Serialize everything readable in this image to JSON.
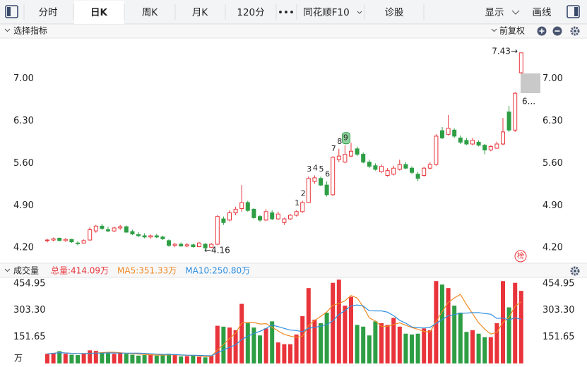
{
  "toolbar": {
    "tabs": [
      "分时",
      "日K",
      "周K",
      "月K",
      "120分",
      "•••",
      "同花顺F10",
      "诊股"
    ],
    "active_tab": 1,
    "right_tabs": [
      "显示",
      "画线"
    ]
  },
  "chart_data": [
    {
      "type": "candlestick",
      "title": "选择指标",
      "adjust": "前复权",
      "up_color": "#e8343a",
      "down_color": "#2e9e45",
      "open": [
        4.32,
        4.33,
        4.36,
        4.32,
        4.34,
        4.28,
        4.28,
        4.33,
        4.48,
        4.56,
        4.5,
        4.48,
        4.53,
        4.55,
        4.47,
        4.42,
        4.4,
        4.38,
        4.4,
        4.38,
        4.32,
        4.24,
        4.26,
        4.23,
        4.25,
        4.22,
        4.26,
        4.21,
        4.26,
        4.68,
        4.66,
        4.78,
        4.85,
        4.95,
        4.84,
        4.72,
        4.66,
        4.78,
        4.68,
        4.62,
        4.68,
        4.74,
        4.8,
        4.95,
        5.3,
        5.35,
        5.24,
        5.08,
        5.66,
        5.62,
        5.72,
        5.84,
        5.75,
        5.62,
        5.56,
        5.46,
        5.4,
        5.42,
        5.5,
        5.58,
        5.52,
        5.42,
        5.4,
        5.52,
        5.58,
        6.14,
        6.08,
        6.15,
        6.02,
        5.98,
        5.92,
        5.95,
        5.9,
        5.82,
        5.85,
        5.92,
        6.45,
        6.15,
        7.1
      ],
      "high": [
        4.35,
        4.37,
        4.37,
        4.36,
        4.35,
        4.31,
        4.34,
        4.54,
        4.58,
        4.6,
        4.55,
        4.55,
        4.58,
        4.57,
        4.5,
        4.46,
        4.44,
        4.42,
        4.43,
        4.4,
        4.34,
        4.28,
        4.29,
        4.28,
        4.27,
        4.3,
        4.28,
        4.28,
        4.74,
        4.72,
        4.82,
        4.88,
        5.24,
        4.98,
        4.86,
        4.74,
        4.84,
        4.82,
        4.8,
        4.7,
        4.76,
        4.82,
        4.98,
        5.38,
        5.4,
        5.38,
        5.3,
        5.72,
        5.84,
        5.9,
        5.94,
        5.88,
        5.78,
        5.66,
        5.6,
        5.58,
        5.52,
        5.56,
        5.66,
        5.62,
        5.55,
        5.46,
        5.54,
        5.62,
        6.08,
        6.2,
        6.4,
        6.18,
        6.06,
        6.02,
        6.02,
        5.98,
        5.92,
        5.9,
        5.96,
        6.35,
        6.55,
        6.78,
        7.43
      ],
      "low": [
        4.29,
        4.31,
        4.31,
        4.3,
        4.28,
        4.24,
        4.27,
        4.32,
        4.45,
        4.5,
        4.46,
        4.46,
        4.5,
        4.45,
        4.41,
        4.38,
        4.36,
        4.35,
        4.36,
        4.33,
        4.22,
        4.21,
        4.22,
        4.21,
        4.2,
        4.21,
        4.16,
        4.2,
        4.25,
        4.58,
        4.64,
        4.74,
        4.8,
        4.8,
        4.68,
        4.63,
        4.64,
        4.66,
        4.66,
        4.58,
        4.66,
        4.72,
        4.78,
        4.94,
        5.26,
        5.22,
        5.05,
        5.06,
        5.62,
        5.6,
        5.7,
        5.72,
        5.6,
        5.52,
        5.48,
        5.44,
        5.38,
        5.4,
        5.48,
        5.5,
        5.42,
        5.3,
        5.38,
        5.5,
        5.56,
        6.0,
        6.06,
        6.02,
        5.92,
        5.9,
        5.9,
        5.88,
        5.75,
        5.8,
        5.84,
        5.9,
        6.12,
        6.12,
        7.08
      ],
      "close": [
        4.33,
        4.35,
        4.32,
        4.34,
        4.3,
        4.27,
        4.32,
        4.5,
        4.56,
        4.52,
        4.48,
        4.53,
        4.55,
        4.46,
        4.43,
        4.4,
        4.38,
        4.4,
        4.38,
        4.35,
        4.24,
        4.26,
        4.23,
        4.25,
        4.22,
        4.28,
        4.2,
        4.26,
        4.72,
        4.62,
        4.78,
        4.84,
        4.95,
        4.82,
        4.7,
        4.66,
        4.8,
        4.68,
        4.76,
        4.68,
        4.74,
        4.8,
        4.95,
        5.35,
        5.36,
        5.24,
        5.08,
        5.7,
        5.72,
        5.75,
        5.8,
        5.75,
        5.62,
        5.55,
        5.5,
        5.55,
        5.48,
        5.52,
        5.58,
        5.52,
        5.45,
        5.35,
        5.52,
        5.58,
        6.05,
        6.02,
        6.18,
        6.05,
        5.95,
        5.92,
        5.98,
        5.9,
        5.82,
        5.88,
        5.92,
        6.12,
        6.15,
        6.76,
        7.43
      ],
      "ylim": [
        3.98,
        7.65
      ],
      "yticks": [
        {
          "value": 4.2,
          "label": "4.20"
        },
        {
          "value": 4.9,
          "label": "4.90"
        },
        {
          "value": 5.6,
          "label": "5.60"
        },
        {
          "value": 6.3,
          "label": "6.30"
        },
        {
          "value": 7,
          "label": "7.00"
        }
      ],
      "grid": false,
      "sequence_labels": [
        1,
        2,
        3,
        4,
        5,
        6,
        7,
        8,
        9
      ],
      "annotations": [
        "7.43→",
        "←4.16",
        "6..."
      ],
      "badge": "榜"
    },
    {
      "type": "volume",
      "title": "成交量",
      "y_unit": "万",
      "series": [
        {
          "name": "总量:414.09万",
          "color": "#e8343a",
          "values": [
            55,
            60,
            70,
            55,
            50,
            48,
            55,
            75,
            72,
            60,
            58,
            55,
            62,
            55,
            50,
            45,
            48,
            52,
            45,
            50,
            55,
            48,
            40,
            42,
            45,
            38,
            35,
            45,
            215,
            210,
            205,
            190,
            340,
            230,
            205,
            160,
            200,
            240,
            120,
            110,
            110,
            165,
            270,
            430,
            250,
            230,
            290,
            460,
            478,
            330,
            380,
            220,
            210,
            160,
            240,
            230,
            220,
            260,
            210,
            170,
            165,
            170,
            200,
            190,
            470,
            450,
            430,
            330,
            290,
            180,
            190,
            170,
            150,
            150,
            230,
            470,
            320,
            460,
            414.09
          ]
        },
        {
          "name": "MA5:351.33万",
          "color": "#f08a24",
          "values": [
            55,
            58,
            62,
            60,
            58,
            56.6,
            55.6,
            56.6,
            60,
            62,
            64,
            64,
            61.4,
            58,
            56,
            53.4,
            52,
            50,
            48,
            48,
            50,
            50,
            47.6,
            47,
            46,
            42.6,
            40,
            41,
            75.6,
            108.6,
            142,
            173,
            232,
            235,
            234,
            225,
            227,
            207,
            185,
            166,
            156,
            149,
            155,
            217,
            245,
            269,
            294,
            332,
            341.6,
            357.6,
            387.6,
            373.6,
            323.6,
            260,
            242,
            212,
            212,
            222,
            232,
            218,
            205,
            195,
            183,
            179,
            239,
            296,
            348,
            374,
            394,
            336,
            284,
            232,
            196,
            168,
            178,
            234,
            264,
            326,
            351.33
          ]
        },
        {
          "name": "MA10:250.80万",
          "color": "#2f8fe0",
          "values": [
            55,
            58,
            62,
            60,
            58,
            57,
            57,
            58,
            59,
            59,
            60.3,
            59.8,
            59,
            59,
            59,
            58.7,
            58,
            55.7,
            53,
            52,
            51.7,
            51,
            48.8,
            47.5,
            47,
            46.3,
            45,
            44.3,
            61.3,
            77.3,
            92.3,
            106.5,
            136.5,
            155.3,
            171.3,
            183.5,
            200,
            219.5,
            210,
            200,
            190.5,
            188,
            181,
            201,
            205.5,
            212.5,
            221.5,
            243.5,
            279.3,
            301.3,
            328.3,
            333.8,
            327.8,
            300.8,
            299.8,
            299.8,
            292.8,
            272.8,
            246,
            230,
            208.5,
            203.5,
            202.5,
            205.5,
            228.5,
            250.5,
            271.5,
            278.5,
            286.5,
            287.5,
            290,
            290,
            285,
            281,
            257,
            259,
            248,
            261,
            250.8
          ]
        }
      ],
      "ylim": [
        0,
        479
      ],
      "yticks": [
        151.65,
        {
          "value": 303.3,
          "label": "303.30"
        },
        454.95
      ]
    }
  ]
}
